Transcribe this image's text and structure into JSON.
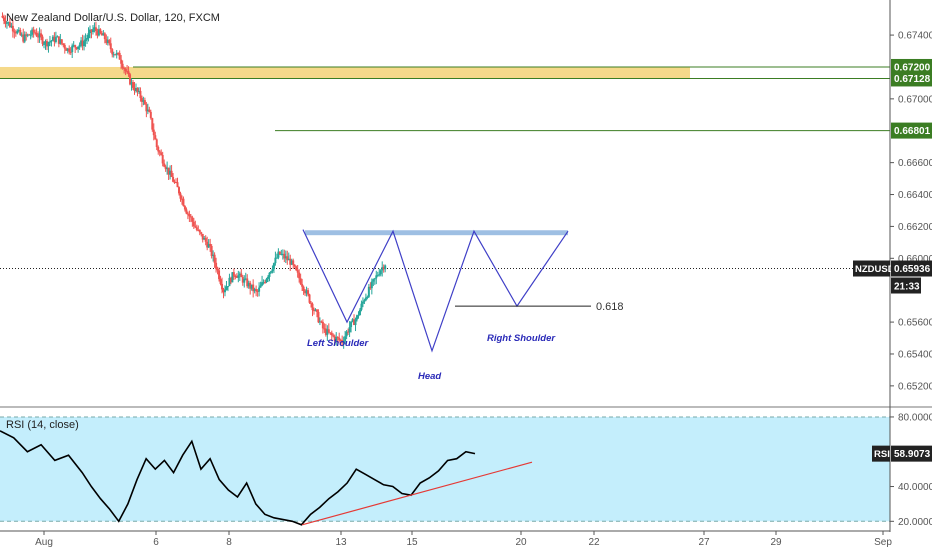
{
  "header": {
    "title": "New Zealand Dollar/U.S. Dollar, 120, FXCM"
  },
  "colors": {
    "up": "#26a69a",
    "down": "#ef5350",
    "pattern": "#3f3fc7",
    "zone_gold": "#f5d98a",
    "zone_blue": "#9ebfe3",
    "level_green": "#3b7d23",
    "rsi_bg": "#c4eefc",
    "rsi_line": "#000000",
    "trend": "#e53935"
  },
  "chart_data": [
    {
      "type": "candlestick",
      "symbol": "NZDUSD",
      "timeframe": "120",
      "x_ticks": [
        "Aug",
        "6",
        "8",
        "13",
        "15",
        "20",
        "22",
        "27",
        "29",
        "Sep"
      ],
      "y_ticks": [
        "0.67400",
        "0.67000",
        "0.66600",
        "0.66400",
        "0.66200",
        "0.66000",
        "0.65600",
        "0.65400",
        "0.65200"
      ],
      "ylim": [
        0.6508,
        0.6762
      ],
      "price_labels": [
        {
          "value": 0.672,
          "text": "0.67200",
          "kind": "level"
        },
        {
          "value": 0.67128,
          "text": "0.67128",
          "kind": "level"
        },
        {
          "value": 0.66801,
          "text": "0.66801",
          "kind": "level"
        },
        {
          "value": 0.65936,
          "text": "0.65936",
          "kind": "current",
          "tag": "NZDUSD"
        }
      ],
      "countdown": "21:33",
      "close_path": [
        [
          0,
          0.6752
        ],
        [
          3,
          0.6745
        ],
        [
          6,
          0.6738
        ],
        [
          9,
          0.6742
        ],
        [
          12,
          0.6735
        ],
        [
          15,
          0.6738
        ],
        [
          18,
          0.6731
        ],
        [
          22,
          0.6735
        ],
        [
          25,
          0.6744
        ],
        [
          28,
          0.6738
        ],
        [
          30,
          0.673
        ],
        [
          32,
          0.6726
        ],
        [
          35,
          0.671
        ],
        [
          38,
          0.67
        ],
        [
          40,
          0.669
        ],
        [
          42,
          0.667
        ],
        [
          45,
          0.6655
        ],
        [
          48,
          0.6642
        ],
        [
          50,
          0.663
        ],
        [
          53,
          0.6617
        ],
        [
          56,
          0.6608
        ],
        [
          58,
          0.6595
        ],
        [
          60,
          0.658
        ],
        [
          63,
          0.6591
        ],
        [
          66,
          0.6585
        ],
        [
          69,
          0.6578
        ],
        [
          72,
          0.659
        ],
        [
          75,
          0.6603
        ],
        [
          78,
          0.6598
        ],
        [
          81,
          0.6585
        ],
        [
          84,
          0.657
        ],
        [
          87,
          0.6555
        ],
        [
          90,
          0.655
        ],
        [
          92,
          0.6548
        ],
        [
          94,
          0.6557
        ],
        [
          96,
          0.6563
        ],
        [
          98,
          0.6575
        ],
        [
          100,
          0.6583
        ],
        [
          102,
          0.6592
        ],
        [
          104,
          0.6598
        ]
      ],
      "annotations": {
        "left_shoulder": "Left Shoulder",
        "head": "Head",
        "right_shoulder": "Right Shoulder",
        "fib_label": "0.618"
      }
    },
    {
      "type": "line",
      "title": "RSI (14, close)",
      "badge": "RSI",
      "current_text": "58.9073",
      "current": 58.9073,
      "y_ticks": [
        "80.0000",
        "40.0000",
        "20.0000"
      ],
      "ylim": [
        15,
        84
      ],
      "band": [
        20,
        80
      ],
      "values": [
        [
          0,
          72
        ],
        [
          3,
          68
        ],
        [
          6,
          60
        ],
        [
          9,
          64
        ],
        [
          12,
          55
        ],
        [
          15,
          58
        ],
        [
          18,
          48
        ],
        [
          20,
          40
        ],
        [
          22,
          33
        ],
        [
          24,
          27
        ],
        [
          26,
          20
        ],
        [
          28,
          30
        ],
        [
          30,
          44
        ],
        [
          32,
          56
        ],
        [
          34,
          50
        ],
        [
          36,
          55
        ],
        [
          38,
          48
        ],
        [
          40,
          58
        ],
        [
          42,
          66
        ],
        [
          44,
          50
        ],
        [
          46,
          56
        ],
        [
          48,
          44
        ],
        [
          50,
          38
        ],
        [
          52,
          34
        ],
        [
          54,
          42
        ],
        [
          56,
          30
        ],
        [
          58,
          24
        ],
        [
          60,
          22
        ],
        [
          62,
          21
        ],
        [
          64,
          20
        ],
        [
          66,
          18
        ],
        [
          68,
          24
        ],
        [
          70,
          28
        ],
        [
          72,
          33
        ],
        [
          74,
          37
        ],
        [
          76,
          42
        ],
        [
          78,
          50
        ],
        [
          80,
          47
        ],
        [
          82,
          44
        ],
        [
          84,
          41
        ],
        [
          86,
          40
        ],
        [
          88,
          36
        ],
        [
          90,
          35
        ],
        [
          92,
          42
        ],
        [
          94,
          45
        ],
        [
          96,
          49
        ],
        [
          98,
          55
        ],
        [
          100,
          56
        ],
        [
          102,
          60
        ],
        [
          104,
          58.9073
        ]
      ],
      "trendline": [
        [
          63,
          18
        ],
        [
          116,
          54
        ]
      ]
    }
  ]
}
